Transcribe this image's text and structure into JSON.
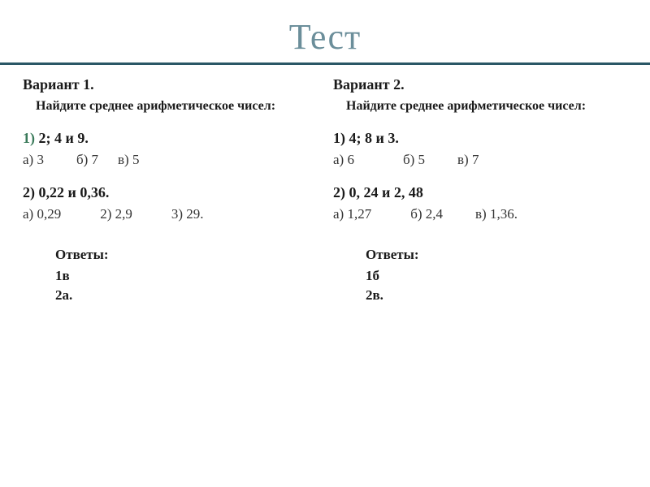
{
  "title": {
    "text": "Тест",
    "color": "#6b8e9a",
    "underline_color": "#2a5766"
  },
  "left": {
    "heading": "Вариант 1.",
    "prompt": "Найдите среднее арифметическое чисел:",
    "q1": {
      "number_color": "#3a7a5a",
      "number": "1)",
      "text": "2;  4  и  9.",
      "opts": [
        {
          "label": "а)",
          "val": "3",
          "gap": 40
        },
        {
          "label": "б)",
          "val": "7",
          "gap": 24
        },
        {
          "label": "в)",
          "val": "5",
          "gap": 0
        }
      ]
    },
    "q2": {
      "header": "2)    0,22 и 0,36.",
      "opts": [
        {
          "label": "а)",
          "val": "0,29",
          "gap": 48
        },
        {
          "label": "2)",
          "val": "2,9",
          "gap": 48
        },
        {
          "label": "3)",
          "val": "29.",
          "gap": 0
        }
      ]
    },
    "answers_title": "Ответы:",
    "answers": [
      "1в",
      "2а."
    ]
  },
  "right": {
    "heading": "Вариант 2.",
    "prompt": "Найдите среднее арифметическое чисел:",
    "q1": {
      "header": "1)    4;  8 и  3.",
      "opts": [
        {
          "label": "а)",
          "val": "6",
          "gap": 60
        },
        {
          "label": "б)",
          "val": "5",
          "gap": 40
        },
        {
          "label": "в)",
          "val": "7",
          "gap": 0
        }
      ]
    },
    "q2": {
      "header": "2)   0, 24 и 2, 48",
      "opts": [
        {
          "label": "а)",
          "val": "1,27",
          "gap": 48
        },
        {
          "label": "б)",
          "val": " 2,4",
          "gap": 40
        },
        {
          "label": "в)",
          "val": "1,36.",
          "gap": 0
        }
      ]
    },
    "answers_title": "Ответы:",
    "answers": [
      "1б",
      "2в."
    ]
  }
}
